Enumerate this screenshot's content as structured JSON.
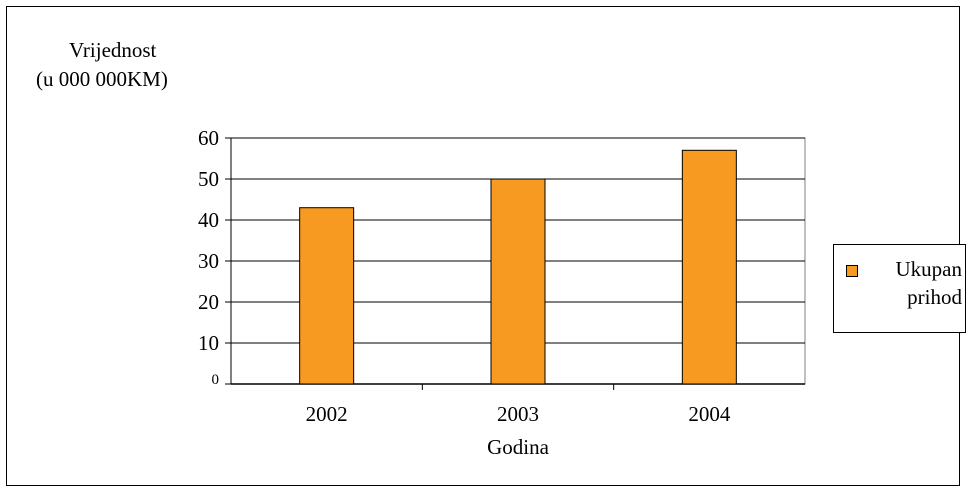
{
  "chart_data": {
    "type": "bar",
    "ylabel_line1": "Vrijednost",
    "ylabel_line2": "(u 000 000KM)",
    "xlabel": "Godina",
    "categories": [
      "2002",
      "2003",
      "2004"
    ],
    "series": [
      {
        "name": "Ukupan prihod",
        "values": [
          43,
          50,
          57
        ],
        "color": "#f79a21"
      }
    ],
    "yticks": [
      0,
      10,
      20,
      30,
      40,
      50,
      60
    ],
    "ylim": [
      0,
      60
    ],
    "grid": true,
    "legend_position": "right"
  }
}
